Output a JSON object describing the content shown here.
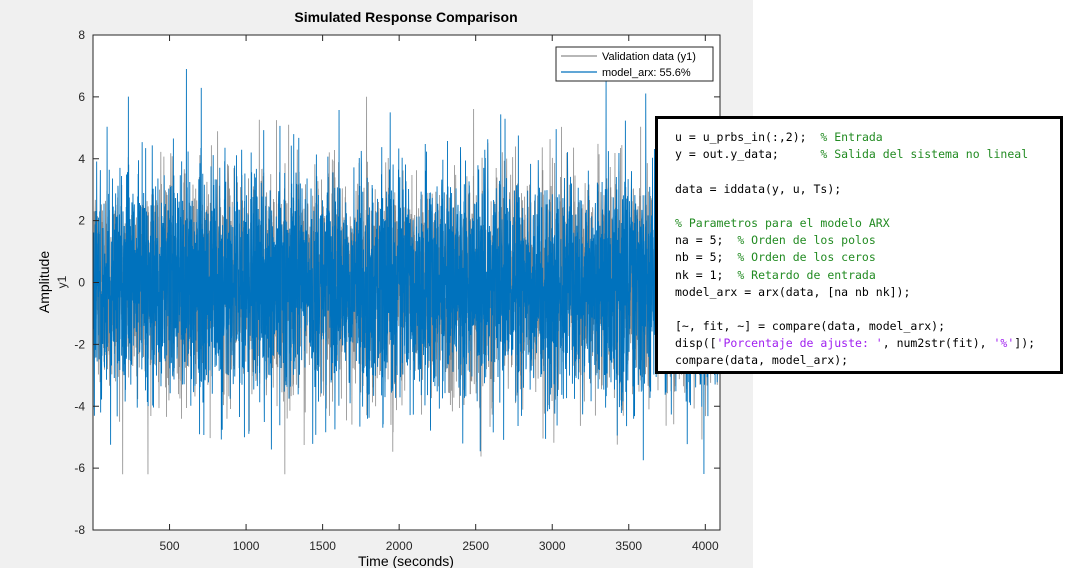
{
  "chart_data": {
    "type": "line",
    "title": "Simulated Response Comparison",
    "xlabel": "Time (seconds)",
    "ylabel": "Amplitude",
    "channel_label": "y1",
    "xlim": [
      0,
      4096
    ],
    "ylim": [
      -8,
      8
    ],
    "xticks": [
      500,
      1000,
      1500,
      2000,
      2500,
      3000,
      3500,
      4000
    ],
    "yticks": [
      -8,
      -6,
      -4,
      -2,
      0,
      2,
      4,
      6,
      8
    ],
    "grid": false,
    "legend_position": "top-right",
    "series": [
      {
        "name": "Validation data (y1)",
        "color": "#8c8c8c",
        "description_range": [
          -6.2,
          6.2
        ],
        "n_points": 4096
      },
      {
        "name": "model_arx: 55.6%",
        "color": "#0072bd",
        "description_range": [
          -6.6,
          6.9
        ],
        "n_points": 4096
      }
    ]
  },
  "code": {
    "lines": [
      [
        {
          "t": "u = u_prbs_in(:,2);  ",
          "k": "code"
        },
        {
          "t": "% Entrada",
          "k": "comment"
        }
      ],
      [
        {
          "t": "y = out.y_data;      ",
          "k": "code"
        },
        {
          "t": "% Salida del sistema no lineal",
          "k": "comment"
        }
      ],
      [
        {
          "t": "",
          "k": "code"
        }
      ],
      [
        {
          "t": "data = iddata(y, u, Ts);",
          "k": "code"
        }
      ],
      [
        {
          "t": "",
          "k": "code"
        }
      ],
      [
        {
          "t": "% Parametros para el modelo ARX",
          "k": "comment"
        }
      ],
      [
        {
          "t": "na = 5;  ",
          "k": "code"
        },
        {
          "t": "% Orden de los polos",
          "k": "comment"
        }
      ],
      [
        {
          "t": "nb = 5;  ",
          "k": "code"
        },
        {
          "t": "% Orden de los ceros",
          "k": "comment"
        }
      ],
      [
        {
          "t": "nk = 1;  ",
          "k": "code"
        },
        {
          "t": "% Retardo de entrada",
          "k": "comment"
        }
      ],
      [
        {
          "t": "model_arx = arx(data, [na nb nk]);",
          "k": "code"
        }
      ],
      [
        {
          "t": "",
          "k": "code"
        }
      ],
      [
        {
          "t": "[~, fit, ~] = compare(data, model_arx);",
          "k": "code"
        }
      ],
      [
        {
          "t": "disp([",
          "k": "code"
        },
        {
          "t": "'Porcentaje de ajuste: '",
          "k": "string"
        },
        {
          "t": ", num2str(fit), ",
          "k": "code"
        },
        {
          "t": "'%'",
          "k": "string"
        },
        {
          "t": "]);",
          "k": "code"
        }
      ],
      [
        {
          "t": "compare(data, model_arx);",
          "k": "code"
        }
      ]
    ]
  }
}
